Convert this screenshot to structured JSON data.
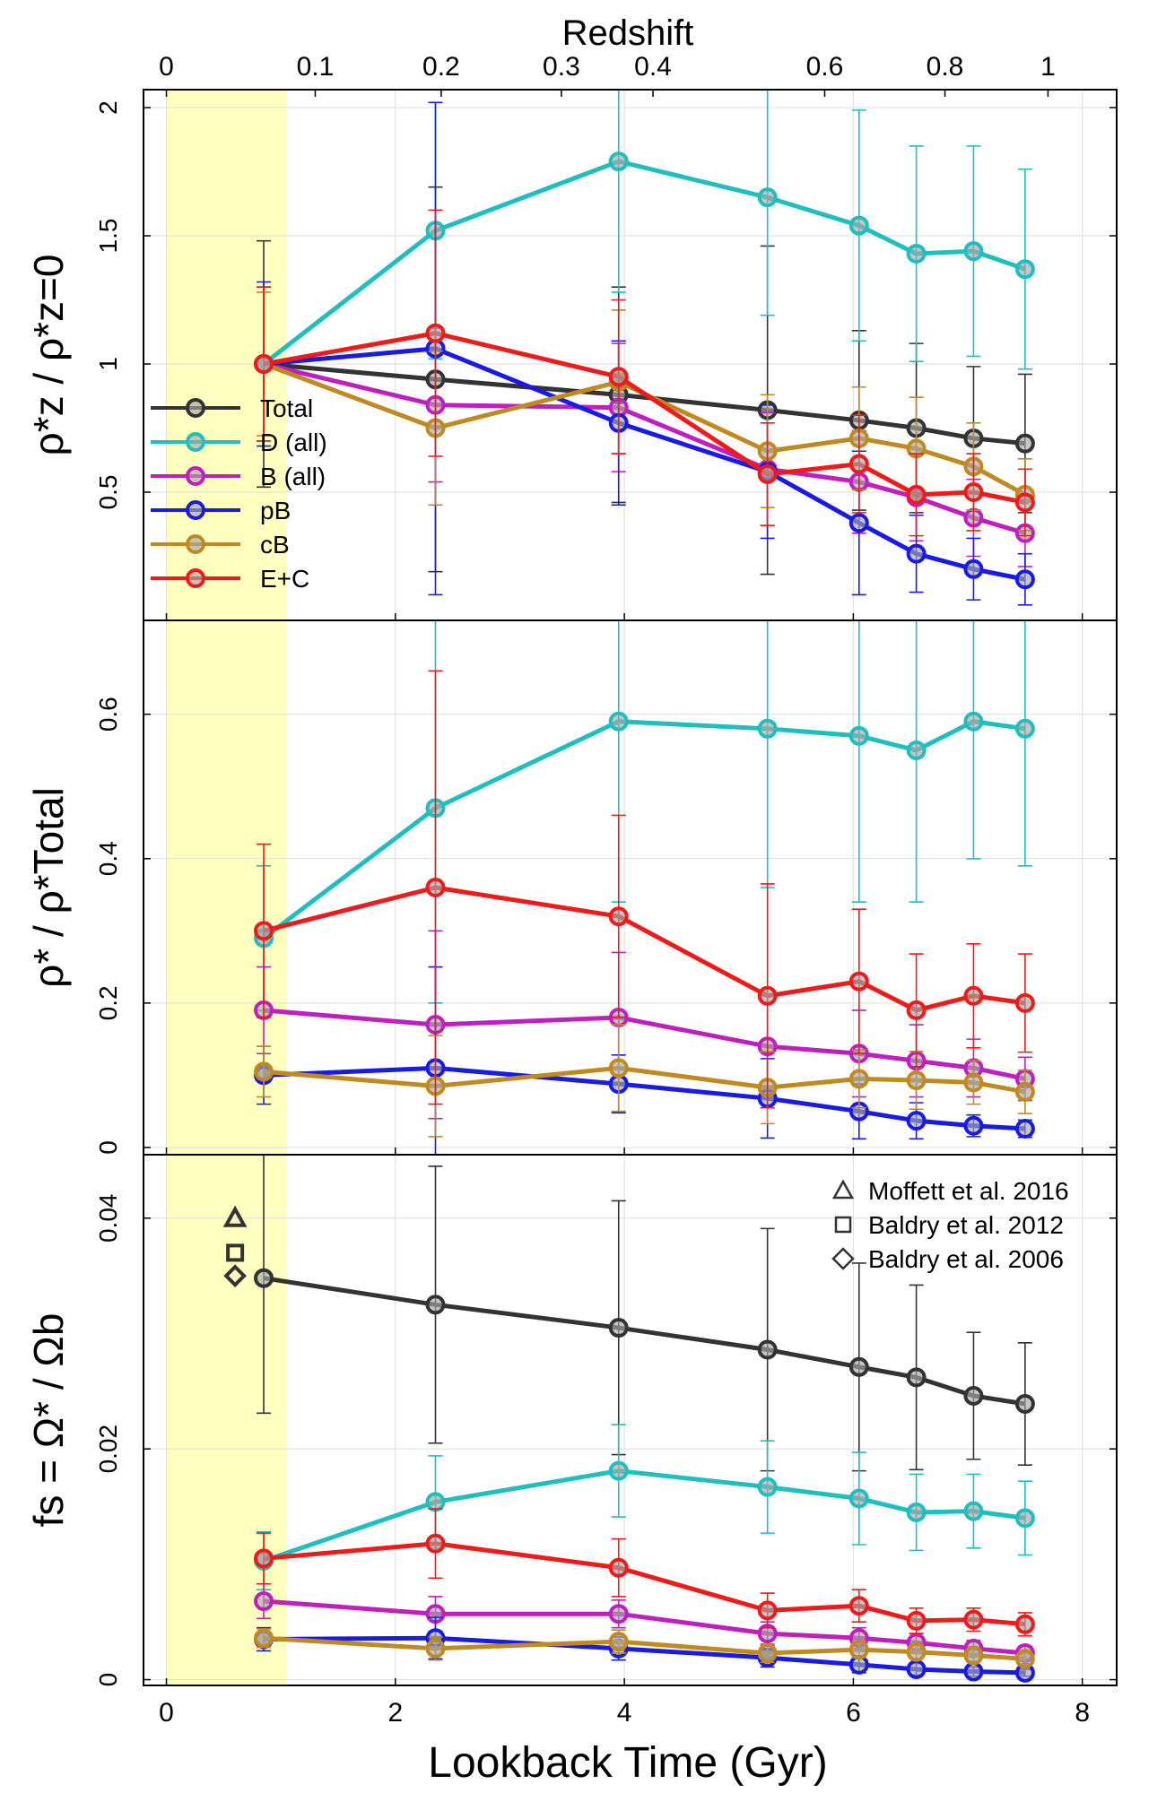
{
  "chart_data": {
    "type": "line",
    "xlabel": "Lookback Time (Gyr)",
    "top_axis_label": "Redshift",
    "xlim": [
      -0.2,
      8.3
    ],
    "xticks": [
      0,
      2,
      4,
      6,
      8
    ],
    "x": [
      0.85,
      2.35,
      3.95,
      5.25,
      6.05,
      6.55,
      7.05,
      7.5
    ],
    "redshift_ticks": [
      {
        "label": "0",
        "t": 0.0
      },
      {
        "label": "0.1",
        "t": 1.3
      },
      {
        "label": "0.2",
        "t": 2.4
      },
      {
        "label": "0.3",
        "t": 3.45
      },
      {
        "label": "0.4",
        "t": 4.25
      },
      {
        "label": "0.6",
        "t": 5.75
      },
      {
        "label": "0.8",
        "t": 6.8
      },
      {
        "label": "1",
        "t": 7.7
      }
    ],
    "highlight_band": {
      "x0": 0.0,
      "x1": 1.05,
      "color": "#ffffbf"
    },
    "series_styles": [
      {
        "name": "Total",
        "color": "#333333"
      },
      {
        "name": "D (all)",
        "color": "#1fbfbf"
      },
      {
        "name": "B (all)",
        "color": "#bf1fbf"
      },
      {
        "name": "pB",
        "color": "#1a1ae6"
      },
      {
        "name": "cB",
        "color": "#c08a20"
      },
      {
        "name": "E+C",
        "color": "#ef1a1a"
      }
    ],
    "panels": [
      {
        "id": "top",
        "ylabel": "ρ*z / ρ*z=0",
        "ylim": [
          0.0,
          2.07
        ],
        "yticks": [
          "0.5",
          "1",
          "1.5",
          "2"
        ],
        "ytick_values": [
          0.5,
          1,
          1.5,
          2
        ],
        "legend": "left",
        "series": [
          {
            "name": "Total",
            "values": [
              1.0,
              0.94,
              0.88,
              0.82,
              0.78,
              0.75,
              0.71,
              0.69
            ],
            "err": [
              0.48,
              0.75,
              0.42,
              0.64,
              0.35,
              0.33,
              0.28,
              0.27
            ]
          },
          {
            "name": "D (all)",
            "values": [
              1.0,
              1.52,
              1.79,
              1.65,
              1.54,
              1.43,
              1.44,
              1.37
            ],
            "err": [
              0.3,
              0.5,
              0.51,
              0.46,
              0.45,
              0.42,
              0.41,
              0.39
            ]
          },
          {
            "name": "B (all)",
            "values": [
              1.0,
              0.84,
              0.83,
              0.59,
              0.54,
              0.48,
              0.4,
              0.34
            ],
            "err": [
              0.3,
              0.3,
              0.25,
              0.22,
              0.2,
              0.17,
              0.15,
              0.13
            ]
          },
          {
            "name": "pB",
            "values": [
              1.0,
              1.06,
              0.77,
              0.58,
              0.38,
              0.26,
              0.2,
              0.16
            ],
            "err": [
              0.32,
              0.96,
              0.32,
              0.26,
              0.28,
              0.15,
              0.12,
              0.1
            ]
          },
          {
            "name": "cB",
            "values": [
              1.0,
              0.75,
              0.93,
              0.66,
              0.71,
              0.67,
              0.6,
              0.49
            ],
            "err": [
              0.28,
              0.3,
              0.28,
              0.22,
              0.2,
              0.2,
              0.17,
              0.14
            ]
          },
          {
            "name": "E+C",
            "values": [
              1.0,
              1.12,
              0.95,
              0.57,
              0.61,
              0.49,
              0.5,
              0.46
            ],
            "err": [
              0.3,
              0.48,
              0.3,
              0.2,
              0.19,
              0.16,
              0.15,
              0.13
            ]
          }
        ]
      },
      {
        "id": "middle",
        "ylabel": "ρ* / ρ*Total",
        "ylim": [
          -0.01,
          0.73
        ],
        "yticks": [
          "0",
          "0.2",
          "0.4",
          "0.6"
        ],
        "ytick_values": [
          0,
          0.2,
          0.4,
          0.6
        ],
        "legend": "none",
        "series": [
          {
            "name": "D (all)",
            "values": [
              0.29,
              0.47,
              0.59,
              0.58,
              0.57,
              0.55,
              0.59,
              0.58
            ],
            "err": [
              0.1,
              0.27,
              0.25,
              0.22,
              0.23,
              0.21,
              0.19,
              0.19
            ]
          },
          {
            "name": "B (all)",
            "values": [
              0.19,
              0.17,
              0.18,
              0.14,
              0.13,
              0.12,
              0.11,
              0.095
            ],
            "err": [
              0.06,
              0.13,
              0.09,
              0.07,
              0.06,
              0.05,
              0.04,
              0.03
            ]
          },
          {
            "name": "pB",
            "values": [
              0.1,
              0.11,
              0.088,
              0.068,
              0.05,
              0.037,
              0.03,
              0.026
            ],
            "err": [
              0.04,
              0.14,
              0.04,
              0.055,
              0.038,
              0.025,
              0.015,
              0.012
            ]
          },
          {
            "name": "cB",
            "values": [
              0.105,
              0.085,
              0.11,
              0.083,
              0.095,
              0.093,
              0.09,
              0.077
            ],
            "err": [
              0.035,
              0.07,
              0.06,
              0.05,
              0.04,
              0.04,
              0.03,
              0.03
            ]
          },
          {
            "name": "E+C",
            "values": [
              0.3,
              0.36,
              0.32,
              0.21,
              0.23,
              0.19,
              0.21,
              0.2
            ],
            "err": [
              0.12,
              0.3,
              0.14,
              0.155,
              0.1,
              0.078,
              0.072,
              0.068
            ]
          }
        ]
      },
      {
        "id": "bottom",
        "ylabel": "fs = Ω* / Ωb",
        "ylim": [
          -0.0005,
          0.0455
        ],
        "yticks": [
          "0",
          "0.02",
          "0.04"
        ],
        "ytick_values": [
          0,
          0.02,
          0.04
        ],
        "legend": "right",
        "series": [
          {
            "name": "Total",
            "values": [
              0.0348,
              0.0325,
              0.0305,
              0.0286,
              0.0271,
              0.0262,
              0.0246,
              0.0239
            ],
            "err": [
              0.0117,
              0.012,
              0.011,
              0.0105,
              0.009,
              0.008,
              0.0055,
              0.0053
            ]
          },
          {
            "name": "D (all)",
            "values": [
              0.0103,
              0.0154,
              0.0181,
              0.0167,
              0.0157,
              0.0145,
              0.0146,
              0.014
            ],
            "err": [
              0.0025,
              0.004,
              0.004,
              0.004,
              0.004,
              0.0033,
              0.0032,
              0.0032
            ]
          },
          {
            "name": "B (all)",
            "values": [
              0.0068,
              0.0057,
              0.0057,
              0.004,
              0.0036,
              0.0032,
              0.0027,
              0.0023
            ],
            "err": [
              0.0015,
              0.0015,
              0.0012,
              0.001,
              0.0009,
              0.0008,
              0.0007,
              0.0006
            ]
          },
          {
            "name": "pB",
            "values": [
              0.0035,
              0.0036,
              0.0027,
              0.0019,
              0.0013,
              0.0009,
              0.0007,
              0.0006
            ],
            "err": [
              0.001,
              0.0018,
              0.001,
              0.0008,
              0.0007,
              0.0005,
              0.0004,
              0.0003
            ]
          },
          {
            "name": "cB",
            "values": [
              0.0036,
              0.0027,
              0.0033,
              0.0023,
              0.0026,
              0.0024,
              0.0021,
              0.0018
            ],
            "err": [
              0.0008,
              0.001,
              0.001,
              0.0008,
              0.0007,
              0.0006,
              0.0005,
              0.0005
            ]
          },
          {
            "name": "E+C",
            "values": [
              0.0105,
              0.0118,
              0.0097,
              0.006,
              0.0064,
              0.0051,
              0.0052,
              0.0048
            ],
            "err": [
              0.0022,
              0.003,
              0.0025,
              0.0015,
              0.0014,
              0.0011,
              0.001,
              0.001
            ]
          }
        ],
        "reference_points": [
          {
            "label": "Moffett et al. 2016",
            "marker": "triangle",
            "x": 0.6,
            "y": 0.04
          },
          {
            "label": "Baldry et al. 2012",
            "marker": "square",
            "x": 0.6,
            "y": 0.037
          },
          {
            "label": "Baldry et al. 2006",
            "marker": "diamond",
            "x": 0.6,
            "y": 0.035
          }
        ]
      }
    ]
  }
}
